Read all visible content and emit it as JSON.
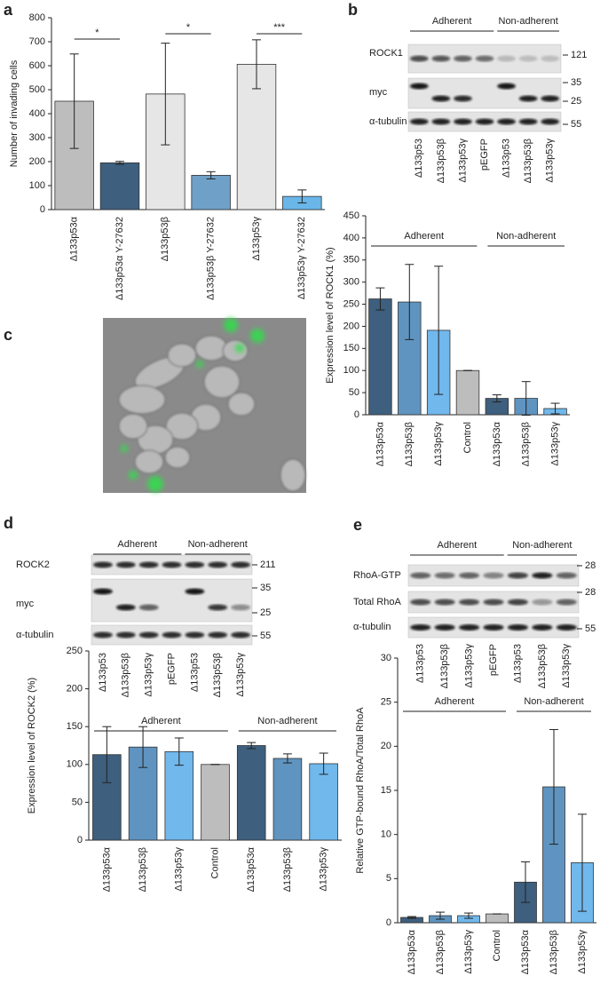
{
  "panel_labels": [
    "a",
    "b",
    "c",
    "d",
    "e"
  ],
  "chart_data": [
    {
      "type": "bar",
      "ylabel": "Number of invading cells",
      "categories": [
        "Δ133p53α",
        "Δ133p53α Y-27632",
        "Δ133p53β",
        "Δ133p53β Y-27632",
        "Δ133p53γ",
        "Δ133p53γ Y-27632"
      ],
      "values": [
        452,
        195,
        482,
        143,
        606,
        55
      ],
      "errors": [
        197,
        6,
        212,
        15,
        102,
        27
      ],
      "colors": [
        "#bdbdbd",
        "#3e5f7e",
        "#e6e6e6",
        "#6fa0c8",
        "#e6e6e6",
        "#6ab6e8"
      ],
      "ylim": [
        0,
        800
      ],
      "yticks": [
        0,
        100,
        200,
        300,
        400,
        500,
        600,
        700,
        800
      ],
      "annotations": [
        "*",
        "*",
        "***"
      ]
    },
    {
      "type": "bar",
      "ylabel": "Expression level of ROCK1 (%)",
      "categories": [
        "Δ133p53α",
        "Δ133p53β",
        "Δ133p53γ",
        "Control",
        "Δ133p53α",
        "Δ133p53β",
        "Δ133p53γ"
      ],
      "values": [
        262,
        255,
        191,
        100,
        37,
        37,
        14
      ],
      "errors": [
        25,
        85,
        145,
        0,
        8,
        38,
        12
      ],
      "colors": [
        "#3e5f7e",
        "#5f94c0",
        "#71b8ec",
        "#bdbdbd",
        "#3e5f7e",
        "#5f94c0",
        "#71b8ec"
      ],
      "ylim": [
        0,
        450
      ],
      "yticks": [
        0,
        50,
        100,
        150,
        200,
        250,
        300,
        350,
        400,
        450
      ],
      "groups": [
        "Adherent",
        "Non-adherent"
      ]
    },
    {
      "type": "bar",
      "ylabel": "Expression level of ROCK2 (%)",
      "categories": [
        "Δ133p53α",
        "Δ133p53β",
        "Δ133p53γ",
        "Control",
        "Δ133p53α",
        "Δ133p53β",
        "Δ133p53γ"
      ],
      "values": [
        113,
        123,
        117,
        100,
        125,
        108,
        101
      ],
      "errors": [
        37,
        27,
        18,
        0,
        4,
        6,
        14
      ],
      "colors": [
        "#3e5f7e",
        "#5f94c0",
        "#71b8ec",
        "#bdbdbd",
        "#3e5f7e",
        "#5f94c0",
        "#71b8ec"
      ],
      "ylim": [
        0,
        250
      ],
      "yticks": [
        0,
        50,
        100,
        150,
        200,
        250
      ],
      "groups": [
        "Adherent",
        "Non-adherent"
      ]
    },
    {
      "type": "bar",
      "ylabel": "Relative GTP-bound RhoA/Total RhoA",
      "categories": [
        "Δ133p53α",
        "Δ133p53β",
        "Δ133p53γ",
        "Control",
        "Δ133p53α",
        "Δ133p53β",
        "Δ133p53γ"
      ],
      "values": [
        0.6,
        0.8,
        0.8,
        1,
        4.6,
        15.4,
        6.8
      ],
      "errors": [
        0.1,
        0.4,
        0.3,
        0,
        2.3,
        6.5,
        5.5
      ],
      "colors": [
        "#3e5f7e",
        "#5f94c0",
        "#71b8ec",
        "#bdbdbd",
        "#3e5f7e",
        "#5f94c0",
        "#71b8ec"
      ],
      "ylim": [
        0,
        30
      ],
      "yticks": [
        0,
        5,
        10,
        15,
        20,
        25,
        30
      ],
      "groups": [
        "Adherent",
        "Non-adherent"
      ]
    }
  ],
  "blots": [
    {
      "groups": [
        "Adherent",
        "Non-adherent"
      ],
      "rows": [
        "ROCK1",
        "myc",
        "α-tubulin"
      ],
      "markers": [
        121,
        35,
        25,
        55
      ],
      "lanes": [
        "Δ133p53",
        "Δ133p53β",
        "Δ133p53γ",
        "pEGFP",
        "Δ133p53",
        "Δ133p53β",
        "Δ133p53γ"
      ]
    },
    {
      "groups": [
        "Adherent",
        "Non-adherent"
      ],
      "rows": [
        "ROCK2",
        "myc",
        "α-tubulin"
      ],
      "markers": [
        211,
        35,
        25,
        55
      ],
      "lanes": [
        "Δ133p53",
        "Δ133p53β",
        "Δ133p53γ",
        "pEGFP",
        "Δ133p53",
        "Δ133p53β",
        "Δ133p53γ"
      ]
    },
    {
      "groups": [
        "Adherent",
        "Non-adherent"
      ],
      "rows": [
        "RhoA-GTP",
        "Total RhoA",
        "α-tubulin"
      ],
      "markers": [
        28,
        28,
        55
      ],
      "lanes": [
        "Δ133p53",
        "Δ133p53β",
        "Δ133p53γ",
        "pEGFP",
        "Δ133p53",
        "Δ133p53β",
        "Δ133p53γ"
      ]
    }
  ]
}
